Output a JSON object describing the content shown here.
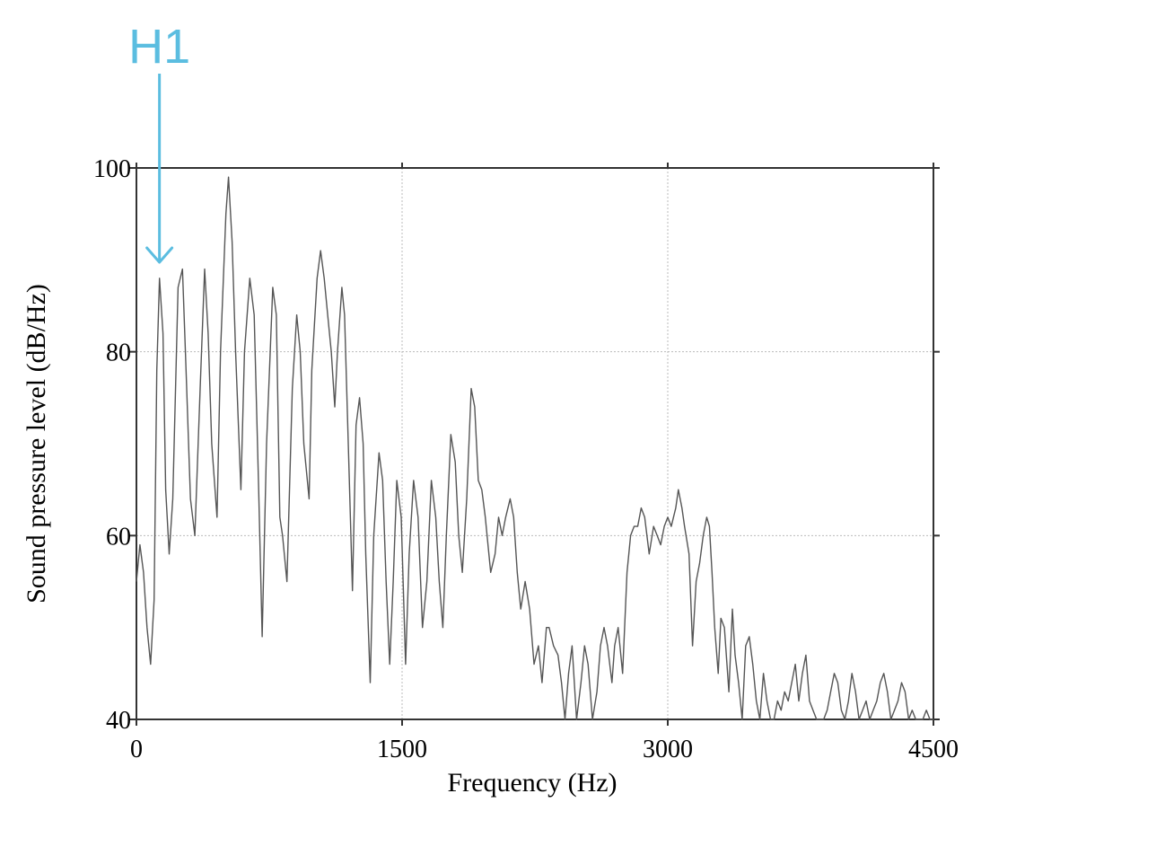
{
  "chart_data": {
    "type": "line",
    "title": "",
    "xlabel": "Frequency (Hz)",
    "ylabel": "Sound pressure level (dB/Hz)",
    "xlim": [
      0,
      4500
    ],
    "ylim": [
      40,
      100
    ],
    "xticks": [
      0,
      1500,
      3000,
      4500
    ],
    "xtick_labels": [
      "0",
      "1500",
      "3000",
      "4500"
    ],
    "yticks": [
      40,
      60,
      80,
      100
    ],
    "ytick_labels": [
      "40",
      "60",
      "80",
      "100"
    ],
    "grid": true,
    "line_color": "#555555",
    "annotation": {
      "text": "H1",
      "x": 130,
      "color": "#5bbde0"
    },
    "series": [
      {
        "values": [
          [
            0,
            55
          ],
          [
            20,
            59
          ],
          [
            40,
            56
          ],
          [
            60,
            50
          ],
          [
            80,
            46
          ],
          [
            100,
            53
          ],
          [
            115,
            78
          ],
          [
            130,
            88
          ],
          [
            150,
            82
          ],
          [
            165,
            65
          ],
          [
            185,
            58
          ],
          [
            205,
            64
          ],
          [
            235,
            87
          ],
          [
            260,
            89
          ],
          [
            280,
            78
          ],
          [
            305,
            64
          ],
          [
            330,
            60
          ],
          [
            360,
            76
          ],
          [
            385,
            89
          ],
          [
            405,
            82
          ],
          [
            425,
            70
          ],
          [
            455,
            62
          ],
          [
            475,
            80
          ],
          [
            505,
            95
          ],
          [
            520,
            99
          ],
          [
            540,
            92
          ],
          [
            560,
            80
          ],
          [
            590,
            65
          ],
          [
            610,
            80
          ],
          [
            640,
            88
          ],
          [
            665,
            84
          ],
          [
            690,
            65
          ],
          [
            710,
            49
          ],
          [
            735,
            70
          ],
          [
            770,
            87
          ],
          [
            790,
            84
          ],
          [
            810,
            62
          ],
          [
            825,
            60
          ],
          [
            850,
            55
          ],
          [
            880,
            76
          ],
          [
            905,
            84
          ],
          [
            925,
            80
          ],
          [
            945,
            70
          ],
          [
            975,
            64
          ],
          [
            990,
            78
          ],
          [
            1020,
            88
          ],
          [
            1040,
            91
          ],
          [
            1060,
            88
          ],
          [
            1080,
            84
          ],
          [
            1100,
            80
          ],
          [
            1120,
            74
          ],
          [
            1135,
            80
          ],
          [
            1160,
            87
          ],
          [
            1175,
            84
          ],
          [
            1205,
            64
          ],
          [
            1220,
            54
          ],
          [
            1240,
            72
          ],
          [
            1260,
            75
          ],
          [
            1280,
            70
          ],
          [
            1295,
            58
          ],
          [
            1320,
            44
          ],
          [
            1340,
            60
          ],
          [
            1370,
            69
          ],
          [
            1390,
            66
          ],
          [
            1410,
            55
          ],
          [
            1430,
            46
          ],
          [
            1450,
            55
          ],
          [
            1470,
            66
          ],
          [
            1495,
            62
          ],
          [
            1520,
            46
          ],
          [
            1540,
            58
          ],
          [
            1565,
            66
          ],
          [
            1590,
            62
          ],
          [
            1615,
            50
          ],
          [
            1640,
            55
          ],
          [
            1665,
            66
          ],
          [
            1690,
            62
          ],
          [
            1710,
            55
          ],
          [
            1730,
            50
          ],
          [
            1750,
            60
          ],
          [
            1775,
            71
          ],
          [
            1800,
            68
          ],
          [
            1820,
            60
          ],
          [
            1840,
            56
          ],
          [
            1865,
            64
          ],
          [
            1890,
            76
          ],
          [
            1910,
            74
          ],
          [
            1930,
            66
          ],
          [
            1950,
            65
          ],
          [
            1970,
            62
          ],
          [
            2000,
            56
          ],
          [
            2025,
            58
          ],
          [
            2045,
            62
          ],
          [
            2065,
            60
          ],
          [
            2085,
            62
          ],
          [
            2110,
            64
          ],
          [
            2130,
            62
          ],
          [
            2150,
            56
          ],
          [
            2170,
            52
          ],
          [
            2195,
            55
          ],
          [
            2220,
            52
          ],
          [
            2245,
            46
          ],
          [
            2270,
            48
          ],
          [
            2290,
            44
          ],
          [
            2315,
            50
          ],
          [
            2330,
            50
          ],
          [
            2355,
            48
          ],
          [
            2380,
            47
          ],
          [
            2400,
            44
          ],
          [
            2420,
            40
          ],
          [
            2440,
            45
          ],
          [
            2460,
            48
          ],
          [
            2485,
            40
          ],
          [
            2510,
            44
          ],
          [
            2530,
            48
          ],
          [
            2550,
            46
          ],
          [
            2575,
            40
          ],
          [
            2600,
            43
          ],
          [
            2620,
            48
          ],
          [
            2640,
            50
          ],
          [
            2660,
            48
          ],
          [
            2685,
            44
          ],
          [
            2700,
            48
          ],
          [
            2720,
            50
          ],
          [
            2745,
            45
          ],
          [
            2770,
            56
          ],
          [
            2790,
            60
          ],
          [
            2810,
            61
          ],
          [
            2830,
            61
          ],
          [
            2850,
            63
          ],
          [
            2870,
            62
          ],
          [
            2895,
            58
          ],
          [
            2920,
            61
          ],
          [
            2940,
            60
          ],
          [
            2960,
            59
          ],
          [
            2980,
            61
          ],
          [
            3000,
            62
          ],
          [
            3020,
            61
          ],
          [
            3045,
            63
          ],
          [
            3060,
            65
          ],
          [
            3080,
            63
          ],
          [
            3095,
            61
          ],
          [
            3120,
            58
          ],
          [
            3140,
            48
          ],
          [
            3160,
            55
          ],
          [
            3180,
            57
          ],
          [
            3200,
            60
          ],
          [
            3220,
            62
          ],
          [
            3235,
            61
          ],
          [
            3250,
            56
          ],
          [
            3265,
            50
          ],
          [
            3285,
            45
          ],
          [
            3300,
            51
          ],
          [
            3320,
            50
          ],
          [
            3345,
            43
          ],
          [
            3365,
            52
          ],
          [
            3380,
            47
          ],
          [
            3400,
            44
          ],
          [
            3420,
            40
          ],
          [
            3440,
            48
          ],
          [
            3460,
            49
          ],
          [
            3480,
            46
          ],
          [
            3500,
            42
          ],
          [
            3520,
            40
          ],
          [
            3540,
            45
          ],
          [
            3560,
            42
          ],
          [
            3580,
            40
          ],
          [
            3600,
            40
          ],
          [
            3620,
            42
          ],
          [
            3640,
            41
          ],
          [
            3660,
            43
          ],
          [
            3680,
            42
          ],
          [
            3700,
            44
          ],
          [
            3720,
            46
          ],
          [
            3740,
            42
          ],
          [
            3760,
            45
          ],
          [
            3780,
            47
          ],
          [
            3800,
            42
          ],
          [
            3820,
            41
          ],
          [
            3840,
            40
          ],
          [
            3860,
            40
          ],
          [
            3880,
            40
          ],
          [
            3900,
            41
          ],
          [
            3920,
            43
          ],
          [
            3940,
            45
          ],
          [
            3960,
            44
          ],
          [
            3980,
            41
          ],
          [
            4000,
            40
          ],
          [
            4020,
            42
          ],
          [
            4040,
            45
          ],
          [
            4060,
            43
          ],
          [
            4080,
            40
          ],
          [
            4100,
            41
          ],
          [
            4120,
            42
          ],
          [
            4140,
            40
          ],
          [
            4160,
            41
          ],
          [
            4180,
            42
          ],
          [
            4200,
            44
          ],
          [
            4220,
            45
          ],
          [
            4240,
            43
          ],
          [
            4260,
            40
          ],
          [
            4280,
            41
          ],
          [
            4300,
            42
          ],
          [
            4320,
            44
          ],
          [
            4340,
            43
          ],
          [
            4360,
            40
          ],
          [
            4380,
            41
          ],
          [
            4400,
            40
          ],
          [
            4420,
            40
          ],
          [
            4440,
            40
          ],
          [
            4460,
            41
          ],
          [
            4480,
            40
          ],
          [
            4500,
            40
          ]
        ]
      }
    ]
  }
}
